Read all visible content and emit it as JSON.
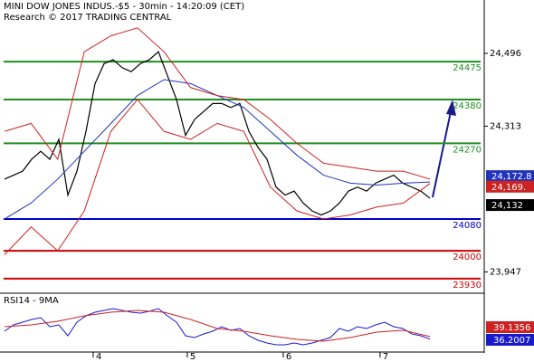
{
  "chart_data": {
    "type": "line",
    "title": "MINI DOW JONES INDUS.-$5 - 30min - 14:20:09 (CET)",
    "subtitle": "Research © 2017 TRADING CENTRAL",
    "ylim": [
      23898,
      24630
    ],
    "yticks": [
      {
        "value": 24496,
        "label": "24,496"
      },
      {
        "value": 24313,
        "label": "24,313"
      },
      {
        "value": 23947,
        "label": "23,947"
      }
    ],
    "xlim": [
      0,
      53
    ],
    "xticks": [
      {
        "value": 10.2,
        "label": "4"
      },
      {
        "value": 20.5,
        "label": "5"
      },
      {
        "value": 31,
        "label": "6"
      },
      {
        "value": 41.6,
        "label": "7"
      }
    ],
    "levels": [
      {
        "value": 24475,
        "color": "#1f8f1f"
      },
      {
        "value": 24380,
        "color": "#1f8f1f"
      },
      {
        "value": 24270,
        "color": "#1f8f1f"
      },
      {
        "value": 24080,
        "color": "#0000cc"
      },
      {
        "value": 24000,
        "color": "#cc0000"
      },
      {
        "value": 23930,
        "color": "#cc0000"
      }
    ],
    "series": [
      {
        "color": "#000000",
        "values": [
          24180,
          24190,
          24200,
          24230,
          24250,
          24230,
          24280,
          24140,
          24200,
          24300,
          24420,
          24470,
          24480,
          24460,
          24450,
          24470,
          24480,
          24500,
          24440,
          24380,
          24290,
          24330,
          24350,
          24370,
          24370,
          24360,
          24370,
          24300,
          24260,
          24230,
          24160,
          24140,
          24150,
          24120,
          24100,
          24090,
          24100,
          24120,
          24150,
          24160,
          24150,
          24170,
          24180,
          24190,
          24170,
          24160,
          24150,
          24132
        ]
      },
      {
        "color": "#2233bb",
        "values": [
          24080,
          24120,
          24180,
          24250,
          24320,
          24390,
          24430,
          24420,
          24390,
          24360,
          24300,
          24240,
          24190,
          24170,
          24165,
          24170,
          24172.8
        ]
      },
      {
        "color": "#cc2222",
        "values": [
          24300,
          24320,
          24230,
          24500,
          24540,
          24560,
          24500,
          24410,
          24390,
          24380,
          24330,
          24270,
          24220,
          24210,
          24200,
          24200,
          24180
        ]
      },
      {
        "color": "#cc2222",
        "values": [
          23990,
          24060,
          24000,
          24100,
          24300,
          24380,
          24300,
          24280,
          24320,
          24300,
          24160,
          24100,
          24080,
          24090,
          24110,
          24120,
          24169
        ]
      }
    ],
    "price_labels": [
      {
        "value": 24172.8,
        "label": "24,172.8",
        "color": "#2233bb"
      },
      {
        "value": 24169,
        "label": "24,169.",
        "color": "#cc2222"
      },
      {
        "value": 24132,
        "label": "24,132",
        "color": "#000000"
      }
    ],
    "rsi": {
      "title": "RSI14 - 9MA",
      "ylim": [
        25,
        75
      ],
      "series": [
        {
          "color": "#1a1acc",
          "values": [
            45,
            52,
            55,
            58,
            60,
            50,
            52,
            40,
            55,
            62,
            66,
            68,
            70,
            68,
            66,
            65,
            67,
            70,
            62,
            55,
            40,
            38,
            42,
            45,
            50,
            46,
            48,
            40,
            35,
            32,
            30,
            30,
            32,
            30,
            32,
            35,
            38,
            48,
            45,
            50,
            48,
            52,
            55,
            50,
            48,
            42,
            40,
            36.2007
          ]
        },
        {
          "color": "#cc2222",
          "values": [
            50,
            52,
            56,
            62,
            66,
            68,
            66,
            58,
            48,
            45,
            40,
            36,
            34,
            38,
            44,
            46,
            39.1356
          ]
        }
      ],
      "labels": [
        {
          "value": 39.1356,
          "color": "#cc2222"
        },
        {
          "value": 36.2007,
          "color": "#1a1acc"
        }
      ]
    }
  }
}
